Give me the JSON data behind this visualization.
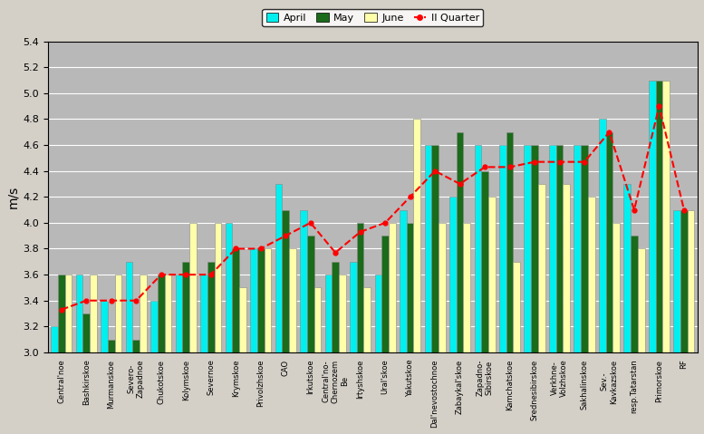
{
  "categories": [
    "Central'noe",
    "Bashkirskoe",
    "Murmanskoe",
    "Severo-\nZapadnoe",
    "Chukotskoe",
    "Kolymskoe",
    "Severnoe",
    "Krymskoe",
    "Privolzhskoe",
    "CAO",
    "Irkutskoe",
    "Central'no-\nChernozem\nBe",
    "Irtyshskoe",
    "Ural'skoe",
    "Yakutskoe",
    "Dal'nevostochnoe",
    "Zabaykal'skoe",
    "Zapadno-\nSibirskoe",
    "Kamchatskoe",
    "Srednesibirskoe",
    "Verkhne-\nVolzhskoe",
    "Sakhalinskoe",
    "Sev.-\nKavkazskoe",
    "resp.Tatarstan",
    "Primorskoe",
    "RF"
  ],
  "april": [
    3.2,
    3.6,
    3.4,
    3.7,
    3.4,
    3.6,
    3.6,
    4.0,
    3.8,
    4.3,
    4.1,
    3.6,
    3.7,
    3.6,
    4.1,
    4.6,
    4.2,
    4.6,
    4.6,
    4.6,
    4.6,
    4.6,
    4.8,
    4.3,
    5.1,
    4.1
  ],
  "may": [
    3.6,
    3.3,
    3.1,
    3.1,
    3.6,
    3.7,
    3.7,
    3.8,
    3.8,
    4.1,
    3.9,
    3.7,
    4.0,
    3.9,
    4.0,
    4.6,
    4.7,
    4.4,
    4.7,
    4.6,
    4.6,
    4.6,
    4.7,
    3.9,
    5.1,
    4.1
  ],
  "june": [
    3.6,
    3.6,
    3.6,
    3.6,
    3.6,
    4.0,
    4.0,
    3.5,
    3.8,
    3.8,
    3.5,
    3.6,
    3.5,
    4.0,
    4.8,
    4.0,
    4.0,
    4.2,
    3.7,
    4.3,
    4.3,
    4.2,
    4.0,
    3.8,
    5.1,
    4.1
  ],
  "quarter2": [
    3.33,
    3.4,
    3.4,
    3.4,
    3.6,
    3.6,
    3.6,
    3.8,
    3.8,
    3.9,
    4.0,
    3.77,
    3.93,
    4.0,
    4.2,
    4.4,
    4.3,
    4.43,
    4.43,
    4.47,
    4.47,
    4.47,
    4.7,
    4.1,
    4.9,
    4.1
  ],
  "bar_width": 0.28,
  "ylim": [
    3.0,
    5.4
  ],
  "yticks": [
    3.0,
    3.2,
    3.4,
    3.6,
    3.8,
    4.0,
    4.2,
    4.4,
    4.6,
    4.8,
    5.0,
    5.2,
    5.4
  ],
  "ylabel": "m/s",
  "color_april": "#00EFEF",
  "color_may": "#1A6B1A",
  "color_june": "#FFFFAA",
  "color_q2_line": "#FF0000",
  "bg_color": "#B8B8B8",
  "legend_labels": [
    "April",
    "May",
    "June",
    "II Quarter"
  ]
}
